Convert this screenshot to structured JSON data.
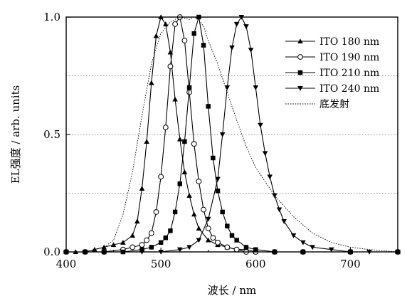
{
  "chart_data": {
    "type": "line",
    "xlabel": "波长 / nm",
    "ylabel": "EL强度 / arb. units",
    "xlim": [
      400,
      750
    ],
    "ylim": [
      0,
      1.0
    ],
    "x_ticks": [
      400,
      500,
      600,
      700
    ],
    "y_ticks": [
      0.0,
      0.5,
      1.0
    ],
    "y_tick_labels": [
      "0.0",
      "0.5",
      "1.0"
    ],
    "grid_y": [
      0.25,
      0.5,
      0.75
    ],
    "legend_position": "top-right",
    "series": [
      {
        "name": "ITO 180 nm",
        "marker": "triangle-up",
        "x": [
          400,
          410,
          420,
          430,
          440,
          450,
          460,
          470,
          475,
          480,
          485,
          490,
          495,
          500,
          505,
          510,
          515,
          520,
          525,
          530,
          535,
          540,
          550,
          560,
          570,
          580,
          590,
          600,
          620,
          650,
          700,
          750
        ],
        "y": [
          0.0,
          0.0,
          0.0,
          0.01,
          0.02,
          0.03,
          0.04,
          0.07,
          0.13,
          0.27,
          0.47,
          0.72,
          0.92,
          1.0,
          0.97,
          0.85,
          0.65,
          0.48,
          0.34,
          0.24,
          0.16,
          0.1,
          0.05,
          0.03,
          0.02,
          0.01,
          0.01,
          0.0,
          0.0,
          0.0,
          0.0,
          0.0
        ]
      },
      {
        "name": "ITO 190 nm",
        "marker": "circle-open",
        "x": [
          400,
          420,
          440,
          460,
          470,
          480,
          485,
          490,
          495,
          500,
          505,
          510,
          515,
          520,
          525,
          530,
          535,
          540,
          545,
          550,
          555,
          560,
          570,
          580,
          590,
          600,
          620,
          650,
          700,
          750
        ],
        "y": [
          0.0,
          0.0,
          0.0,
          0.01,
          0.02,
          0.03,
          0.05,
          0.08,
          0.17,
          0.32,
          0.53,
          0.79,
          0.97,
          1.0,
          0.9,
          0.68,
          0.46,
          0.3,
          0.18,
          0.1,
          0.06,
          0.04,
          0.02,
          0.01,
          0.0,
          0.0,
          0.0,
          0.0,
          0.0,
          0.0
        ]
      },
      {
        "name": "ITO 210 nm",
        "marker": "square-filled",
        "x": [
          400,
          420,
          440,
          460,
          480,
          490,
          500,
          505,
          510,
          515,
          520,
          525,
          530,
          535,
          540,
          545,
          550,
          555,
          560,
          565,
          570,
          575,
          580,
          590,
          600,
          620,
          650,
          700,
          750
        ],
        "y": [
          0.0,
          0.0,
          0.0,
          0.0,
          0.01,
          0.02,
          0.04,
          0.06,
          0.09,
          0.17,
          0.29,
          0.47,
          0.7,
          0.93,
          1.0,
          0.88,
          0.62,
          0.4,
          0.26,
          0.17,
          0.11,
          0.07,
          0.05,
          0.02,
          0.01,
          0.0,
          0.0,
          0.0,
          0.0
        ]
      },
      {
        "name": "ITO 240 nm",
        "marker": "triangle-down",
        "x": [
          400,
          420,
          440,
          460,
          480,
          500,
          520,
          530,
          540,
          550,
          560,
          565,
          570,
          575,
          580,
          585,
          590,
          595,
          600,
          605,
          610,
          615,
          620,
          625,
          630,
          640,
          650,
          660,
          680,
          700,
          720,
          750
        ],
        "y": [
          0.0,
          0.0,
          0.0,
          0.0,
          0.0,
          0.0,
          0.01,
          0.02,
          0.05,
          0.14,
          0.31,
          0.5,
          0.7,
          0.87,
          0.97,
          1.0,
          0.96,
          0.86,
          0.7,
          0.54,
          0.42,
          0.32,
          0.24,
          0.18,
          0.13,
          0.07,
          0.04,
          0.02,
          0.01,
          0.0,
          0.0,
          0.0
        ]
      },
      {
        "name": "底发射",
        "marker": "none",
        "style": "dotted",
        "x": [
          400,
          420,
          440,
          450,
          460,
          470,
          480,
          490,
          500,
          510,
          520,
          530,
          535,
          540,
          545,
          550,
          560,
          570,
          580,
          590,
          600,
          620,
          640,
          660,
          680,
          700,
          720,
          750
        ],
        "y": [
          0.0,
          0.0,
          0.02,
          0.05,
          0.16,
          0.34,
          0.58,
          0.8,
          0.93,
          0.98,
          1.0,
          0.99,
          1.0,
          0.99,
          0.96,
          0.9,
          0.8,
          0.68,
          0.56,
          0.45,
          0.36,
          0.24,
          0.15,
          0.08,
          0.04,
          0.02,
          0.01,
          0.0
        ]
      }
    ]
  }
}
